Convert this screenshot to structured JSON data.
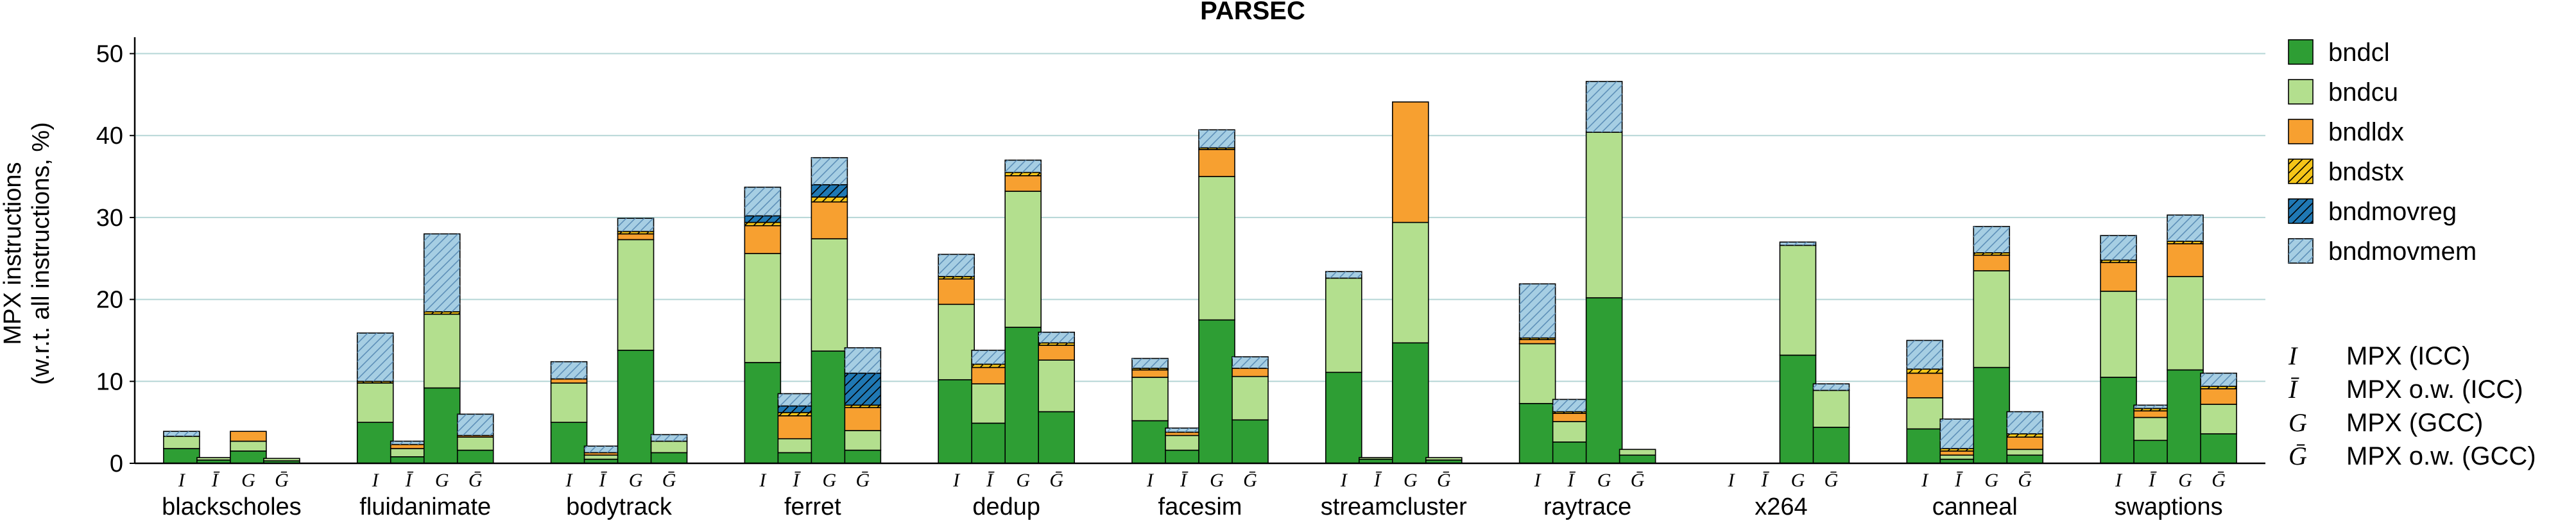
{
  "chart_data": {
    "type": "bar",
    "title": "PARSEC",
    "ylabel": "MPX instructions",
    "ylabel2": "(w.r.t. all instructions, %)",
    "ylim": [
      0,
      52
    ],
    "yticks": [
      0,
      10,
      20,
      30,
      40,
      50
    ],
    "grid": "horizontal",
    "legend_position": "right",
    "stacked": true,
    "categories": [
      "blackscholes",
      "fluidanimate",
      "bodytrack",
      "ferret",
      "dedup",
      "facesim",
      "streamcluster",
      "raytrace",
      "x264",
      "canneal",
      "swaptions"
    ],
    "bar_labels": [
      "I",
      "Ī",
      "G",
      "Ḡ"
    ],
    "series": [
      {
        "name": "bndcl",
        "color": "#2e9e34",
        "hatch": false
      },
      {
        "name": "bndcu",
        "color": "#b3df8e",
        "hatch": false
      },
      {
        "name": "bndldx",
        "color": "#f7a030",
        "hatch": false
      },
      {
        "name": "bndstx",
        "color": "#f5c518",
        "hatch": true
      },
      {
        "name": "bndmovreg",
        "color": "#1f78b4",
        "hatch": true
      },
      {
        "name": "bndmovmem",
        "color": "#a6cee3",
        "hatch": true
      }
    ],
    "bars": [
      [
        [
          1.8,
          1.5,
          0,
          0,
          0,
          0.6
        ],
        [
          0.4,
          0.3,
          0,
          0,
          0,
          0
        ],
        [
          1.5,
          1.2,
          1.2,
          0,
          0,
          0
        ],
        [
          0.3,
          0.3,
          0,
          0,
          0,
          0
        ]
      ],
      [
        [
          5.0,
          4.8,
          0,
          0.2,
          0,
          5.9
        ],
        [
          0.8,
          1.0,
          0.5,
          0,
          0,
          0.4
        ],
        [
          9.2,
          9.0,
          0,
          0.3,
          0,
          9.5
        ],
        [
          1.6,
          1.6,
          0.2,
          0,
          0,
          2.6
        ]
      ],
      [
        [
          5.0,
          4.8,
          0.5,
          0,
          0,
          2.1
        ],
        [
          0.5,
          0.5,
          0.3,
          0,
          0,
          0.8
        ],
        [
          13.8,
          13.5,
          0.7,
          0.3,
          0,
          1.6
        ],
        [
          1.3,
          1.4,
          0,
          0,
          0,
          0.8
        ]
      ],
      [
        [
          12.3,
          13.3,
          3.4,
          0.4,
          0.8,
          3.5
        ],
        [
          1.3,
          1.7,
          2.8,
          0.4,
          0.8,
          1.5
        ],
        [
          13.7,
          13.7,
          4.5,
          0.6,
          1.5,
          3.3
        ],
        [
          1.6,
          2.4,
          2.8,
          0.3,
          3.9,
          3.1
        ]
      ],
      [
        [
          10.2,
          9.2,
          3.1,
          0.3,
          0,
          2.7
        ],
        [
          4.9,
          4.8,
          2.0,
          0.4,
          0,
          1.7
        ],
        [
          16.6,
          16.6,
          1.9,
          0.4,
          0,
          1.5
        ],
        [
          6.3,
          6.3,
          1.8,
          0.3,
          0,
          1.3
        ]
      ],
      [
        [
          5.2,
          5.3,
          0.9,
          0.2,
          0,
          1.2
        ],
        [
          1.6,
          1.8,
          0.4,
          0,
          0,
          0.5
        ],
        [
          17.5,
          17.5,
          3.3,
          0.2,
          0,
          2.2
        ],
        [
          5.3,
          5.3,
          1.0,
          0,
          0,
          1.4
        ]
      ],
      [
        [
          11.1,
          11.5,
          0,
          0,
          0,
          0.8
        ],
        [
          0.5,
          0.2,
          0,
          0,
          0,
          0
        ],
        [
          14.7,
          14.7,
          14.7,
          0,
          0,
          0
        ],
        [
          0.4,
          0.3,
          0,
          0,
          0,
          0
        ]
      ],
      [
        [
          7.3,
          7.3,
          0.5,
          0.2,
          0,
          6.6
        ],
        [
          2.6,
          2.5,
          1.0,
          0.2,
          0,
          1.5
        ],
        [
          20.2,
          20.2,
          0,
          0,
          0,
          6.2
        ],
        [
          1.0,
          0.7,
          0,
          0,
          0,
          0
        ]
      ],
      [
        [
          0,
          0,
          0,
          0,
          0,
          0
        ],
        [
          0,
          0,
          0,
          0,
          0,
          0
        ],
        [
          13.2,
          13.4,
          0,
          0,
          0,
          0.4
        ],
        [
          4.4,
          4.5,
          0,
          0,
          0,
          0.8
        ]
      ],
      [
        [
          4.2,
          3.8,
          3.0,
          0.5,
          0,
          3.5
        ],
        [
          0.5,
          0.5,
          0.5,
          0.3,
          0,
          3.6
        ],
        [
          11.7,
          11.8,
          1.9,
          0.3,
          0,
          3.2
        ],
        [
          1.0,
          0.7,
          1.5,
          0.4,
          0,
          2.7
        ]
      ],
      [
        [
          10.5,
          10.5,
          3.5,
          0.3,
          0,
          3.0
        ],
        [
          2.8,
          2.8,
          0.8,
          0.3,
          0,
          0.4
        ],
        [
          11.4,
          11.4,
          4.0,
          0.3,
          0,
          3.2
        ],
        [
          3.6,
          3.6,
          1.9,
          0.3,
          0,
          1.6
        ]
      ]
    ]
  },
  "bar_notes": [
    {
      "symbol": "I",
      "text": "MPX (ICC)"
    },
    {
      "symbol": "Ī",
      "text": "MPX o.w. (ICC)"
    },
    {
      "symbol": "G",
      "text": "MPX (GCC)"
    },
    {
      "symbol": "Ḡ",
      "text": "MPX o.w. (GCC)"
    }
  ]
}
